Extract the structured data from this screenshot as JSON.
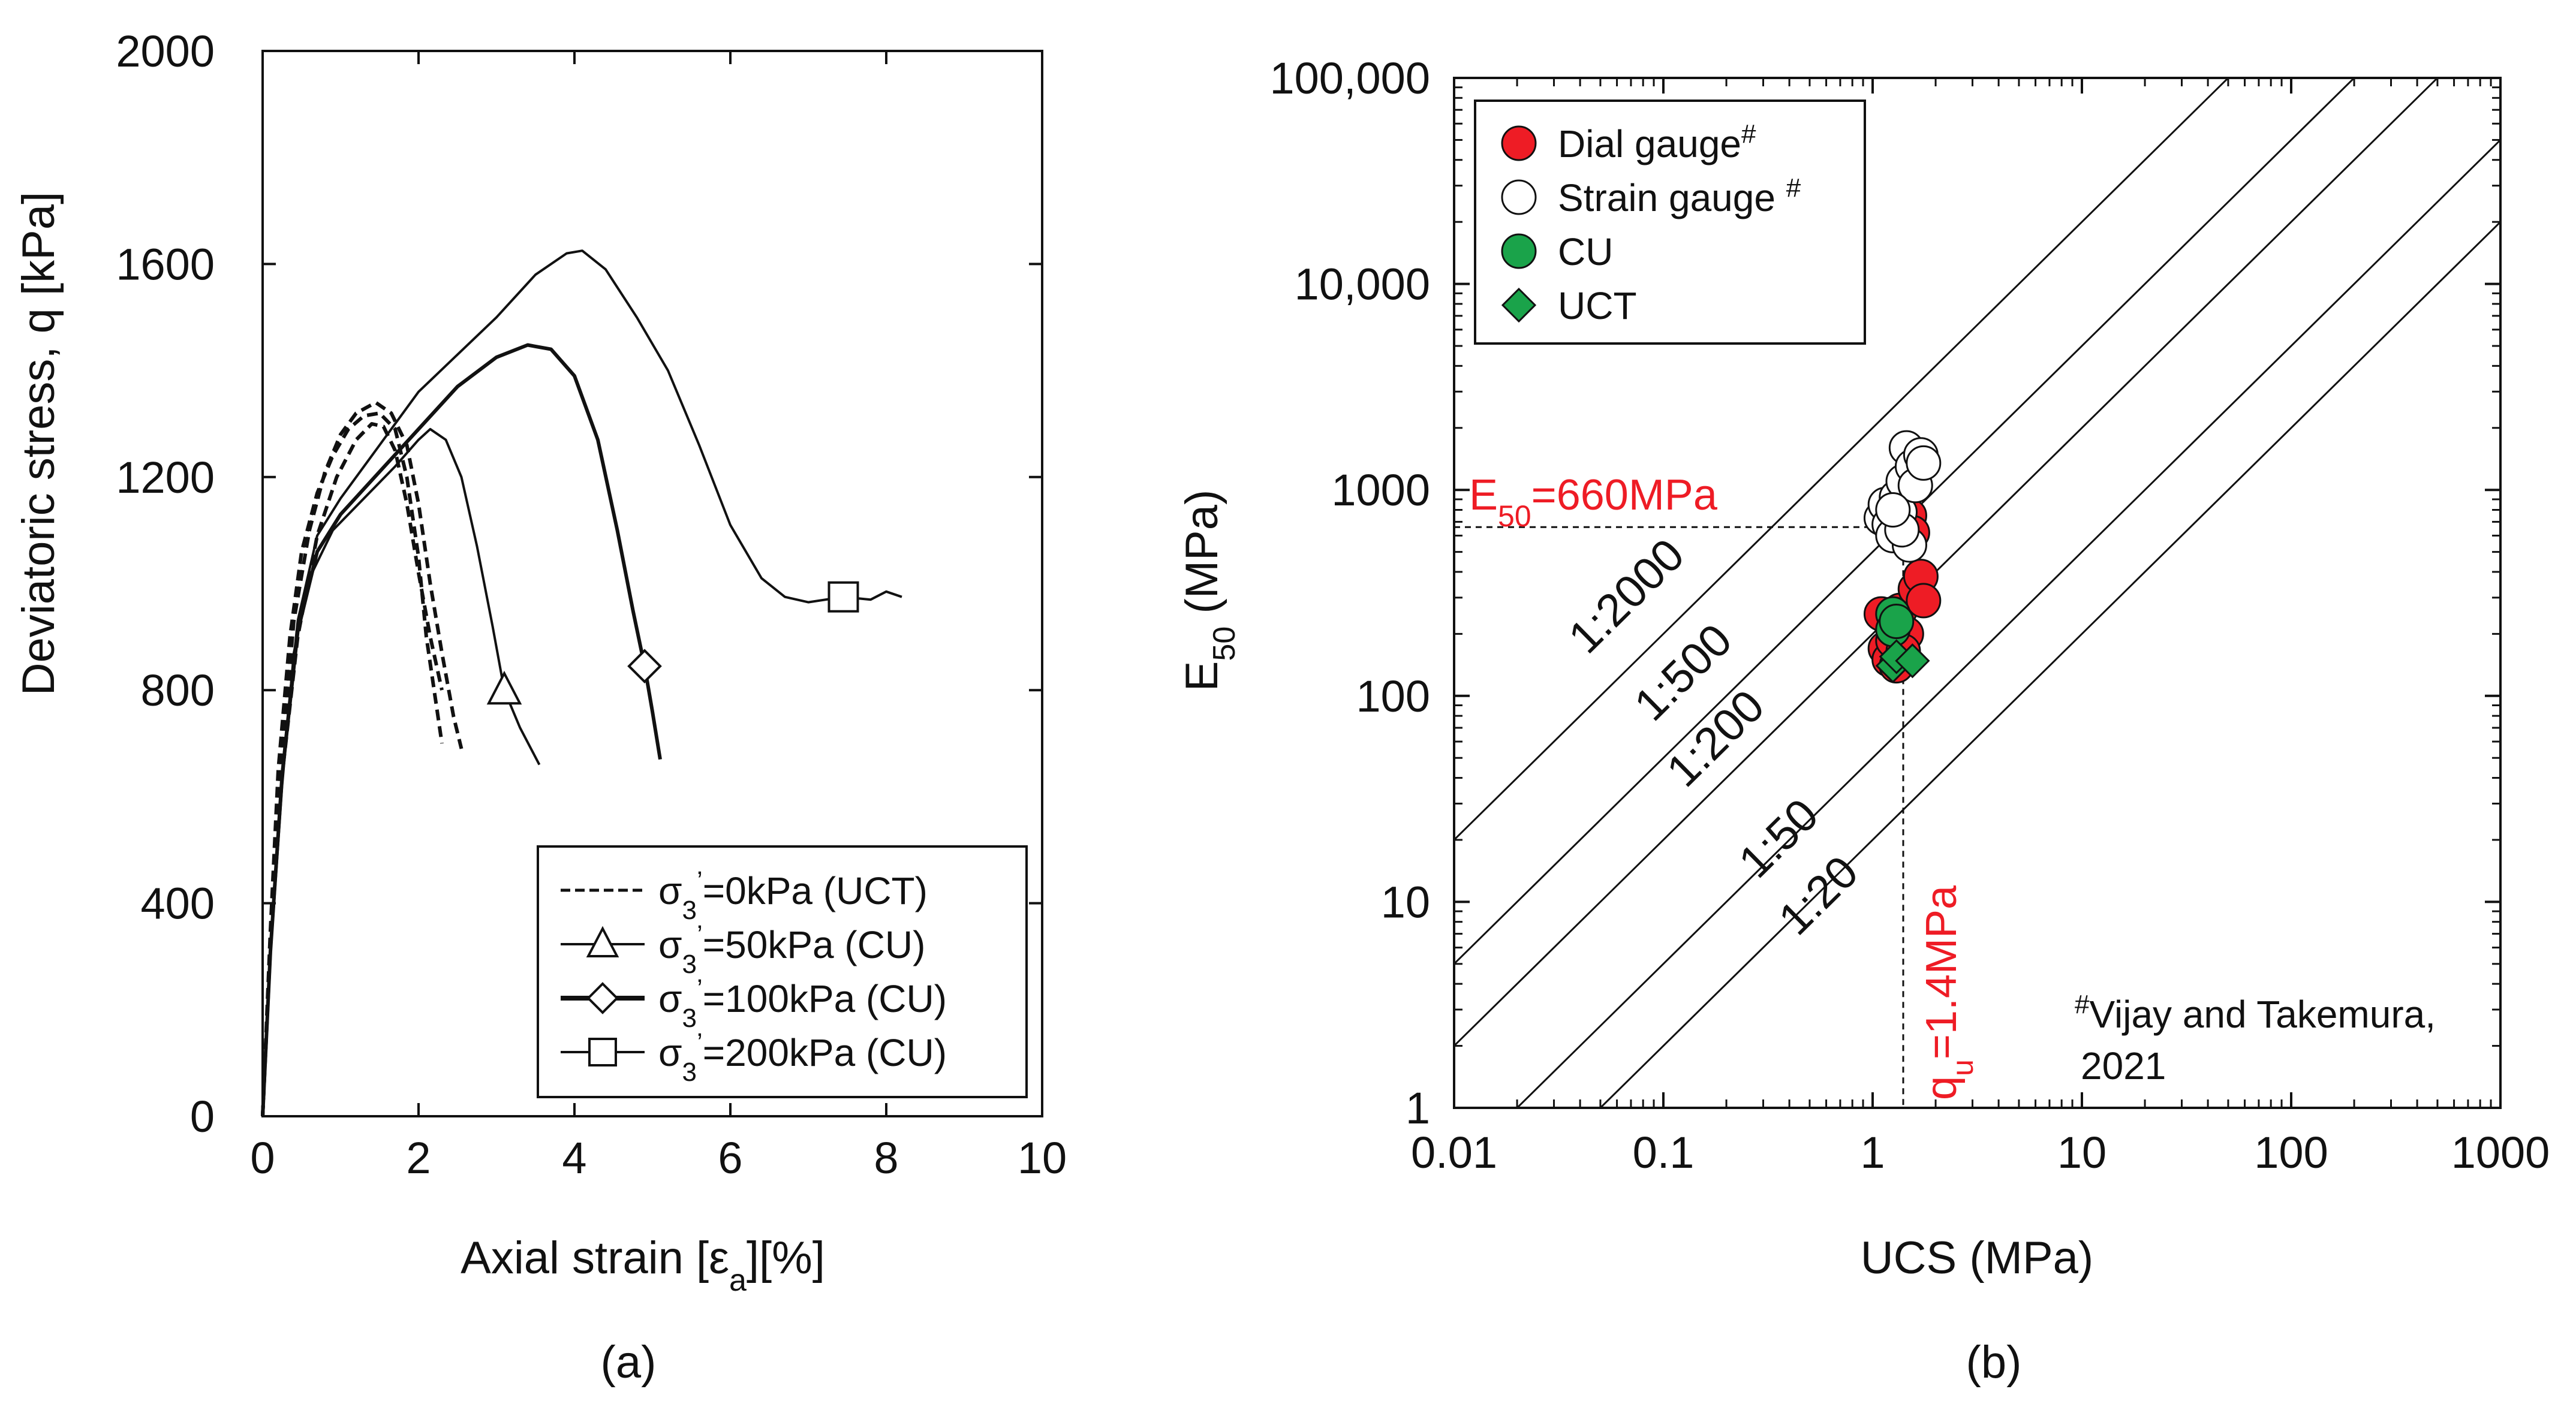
{
  "chart_data": [
    {
      "type": "line",
      "panel_label": "(a)",
      "xlabel_parts": [
        "Axial strain [",
        "ε",
        "a",
        "][%]"
      ],
      "ylabel": "Deviatoric stress, q [kPa]",
      "xlim": [
        0,
        10
      ],
      "ylim": [
        0,
        2000
      ],
      "xticks": [
        0,
        2,
        4,
        6,
        8,
        10
      ],
      "yticks": [
        0,
        400,
        800,
        1200,
        1600,
        2000
      ],
      "legend": {
        "position": "bottom-right",
        "entries": [
          {
            "series": "uct",
            "sigma": "σ",
            "sub": "3",
            "prime": "’",
            "rest": "=0kPa (UCT)"
          },
          {
            "series": "cu50",
            "sigma": "σ",
            "sub": "3",
            "prime": "’",
            "rest": "=50kPa (CU)"
          },
          {
            "series": "cu100",
            "sigma": "σ",
            "sub": "3",
            "prime": "’",
            "rest": "=100kPa (CU)"
          },
          {
            "series": "cu200",
            "sigma": "σ",
            "sub": "3",
            "prime": "’",
            "rest": "=200kPa (CU)"
          }
        ]
      },
      "series": [
        {
          "name": "σ3'=0kPa (UCT) test 1",
          "style": "dashed",
          "marker": "none",
          "points": [
            [
              0,
              0
            ],
            [
              0.1,
              350
            ],
            [
              0.2,
              650
            ],
            [
              0.35,
              900
            ],
            [
              0.5,
              1060
            ],
            [
              0.7,
              1170
            ],
            [
              0.9,
              1240
            ],
            [
              1.1,
              1290
            ],
            [
              1.3,
              1315
            ],
            [
              1.5,
              1320
            ],
            [
              1.7,
              1290
            ],
            [
              1.85,
              1200
            ],
            [
              2.0,
              1050
            ],
            [
              2.1,
              900
            ],
            [
              2.2,
              800
            ],
            [
              2.3,
              700
            ]
          ]
        },
        {
          "name": "σ3'=0kPa (UCT) test 2",
          "style": "dashed",
          "marker": "none",
          "points": [
            [
              0,
              0
            ],
            [
              0.12,
              380
            ],
            [
              0.25,
              680
            ],
            [
              0.4,
              930
            ],
            [
              0.6,
              1100
            ],
            [
              0.8,
              1210
            ],
            [
              1.0,
              1280
            ],
            [
              1.2,
              1320
            ],
            [
              1.45,
              1340
            ],
            [
              1.65,
              1320
            ],
            [
              1.85,
              1260
            ],
            [
              2.0,
              1150
            ],
            [
              2.15,
              1000
            ],
            [
              2.3,
              870
            ],
            [
              2.45,
              750
            ],
            [
              2.55,
              690
            ]
          ]
        },
        {
          "name": "σ3'=0kPa (UCT) test 3",
          "style": "dashed",
          "marker": "none",
          "points": [
            [
              0,
              0
            ],
            [
              0.1,
              330
            ],
            [
              0.25,
              640
            ],
            [
              0.45,
              900
            ],
            [
              0.7,
              1090
            ],
            [
              0.95,
              1200
            ],
            [
              1.2,
              1270
            ],
            [
              1.4,
              1300
            ],
            [
              1.55,
              1295
            ],
            [
              1.7,
              1250
            ],
            [
              1.85,
              1150
            ],
            [
              2.0,
              1020
            ],
            [
              2.15,
              900
            ],
            [
              2.3,
              800
            ]
          ]
        },
        {
          "name": "σ3'=50kPa (CU)",
          "style": "solid",
          "marker": "triangle",
          "marker_at": [
            3.1,
            800
          ],
          "points": [
            [
              0,
              0
            ],
            [
              0.1,
              300
            ],
            [
              0.25,
              620
            ],
            [
              0.4,
              870
            ],
            [
              0.6,
              1010
            ],
            [
              0.9,
              1100
            ],
            [
              1.3,
              1160
            ],
            [
              1.7,
              1220
            ],
            [
              2.0,
              1270
            ],
            [
              2.15,
              1290
            ],
            [
              2.35,
              1270
            ],
            [
              2.55,
              1200
            ],
            [
              2.75,
              1070
            ],
            [
              2.95,
              920
            ],
            [
              3.1,
              800
            ],
            [
              3.3,
              730
            ],
            [
              3.55,
              660
            ]
          ]
        },
        {
          "name": "σ3'=100kPa (CU)",
          "style": "solid",
          "marker": "diamond",
          "marker_at": [
            4.9,
            845
          ],
          "points": [
            [
              0,
              0
            ],
            [
              0.1,
              310
            ],
            [
              0.25,
              640
            ],
            [
              0.45,
              910
            ],
            [
              0.7,
              1060
            ],
            [
              1.0,
              1130
            ],
            [
              1.5,
              1210
            ],
            [
              2.0,
              1290
            ],
            [
              2.5,
              1370
            ],
            [
              3.0,
              1425
            ],
            [
              3.4,
              1448
            ],
            [
              3.7,
              1440
            ],
            [
              4.0,
              1390
            ],
            [
              4.3,
              1270
            ],
            [
              4.55,
              1100
            ],
            [
              4.75,
              950
            ],
            [
              4.9,
              845
            ],
            [
              5.0,
              760
            ],
            [
              5.1,
              670
            ]
          ]
        },
        {
          "name": "σ3'=200kPa (CU)",
          "style": "solid",
          "marker": "square",
          "marker_at": [
            7.45,
            975
          ],
          "points": [
            [
              0,
              0
            ],
            [
              0.1,
              320
            ],
            [
              0.25,
              650
            ],
            [
              0.45,
              930
            ],
            [
              0.7,
              1090
            ],
            [
              1.0,
              1160
            ],
            [
              1.5,
              1260
            ],
            [
              2.0,
              1360
            ],
            [
              2.5,
              1430
            ],
            [
              3.0,
              1500
            ],
            [
              3.5,
              1580
            ],
            [
              3.9,
              1620
            ],
            [
              4.1,
              1625
            ],
            [
              4.4,
              1590
            ],
            [
              4.8,
              1500
            ],
            [
              5.2,
              1400
            ],
            [
              5.6,
              1260
            ],
            [
              6.0,
              1110
            ],
            [
              6.4,
              1010
            ],
            [
              6.7,
              975
            ],
            [
              7.0,
              965
            ],
            [
              7.45,
              975
            ],
            [
              7.8,
              970
            ],
            [
              8.0,
              985
            ],
            [
              8.2,
              975
            ]
          ]
        }
      ]
    },
    {
      "type": "scatter",
      "panel_label": "(b)",
      "xlabel": "UCS (MPa)",
      "ylabel_parts": [
        "E",
        "50",
        " (MPa)"
      ],
      "xscale": "log",
      "yscale": "log",
      "xlim": [
        0.01,
        1000
      ],
      "ylim": [
        1,
        100000
      ],
      "xtick_values": [
        0.01,
        0.1,
        1,
        10,
        100,
        1000
      ],
      "xtick_labels": [
        "0.01",
        "0.1",
        "1",
        "10",
        "100",
        "1000"
      ],
      "ytick_values": [
        1,
        10,
        100,
        1000,
        10000,
        100000
      ],
      "ytick_labels": [
        "1",
        "10",
        "100",
        "1000",
        "10,000",
        "100,000"
      ],
      "ratio_lines": [
        {
          "label": "1:2000",
          "ratio": 2000,
          "label_at": [
            0.075,
            270
          ]
        },
        {
          "label": "1:500",
          "ratio": 500,
          "label_at": [
            0.14,
            115
          ]
        },
        {
          "label": "1:200",
          "ratio": 200,
          "label_at": [
            0.2,
            55
          ]
        },
        {
          "label": "1:50",
          "ratio": 50,
          "label_at": [
            0.4,
            18
          ]
        },
        {
          "label": "1:20",
          "ratio": 20,
          "label_at": [
            0.62,
            9.5
          ]
        }
      ],
      "legend": {
        "position": "top-left",
        "entries": [
          {
            "series": "dial",
            "label": "Dial gauge",
            "sup": "#"
          },
          {
            "series": "strain",
            "label": "Strain gauge ",
            "sup": "#"
          },
          {
            "series": "cu",
            "label": "CU",
            "sup": ""
          },
          {
            "series": "uct",
            "label": "UCT",
            "sup": ""
          }
        ]
      },
      "reference_lines": {
        "E50": 660,
        "qu": 1.4
      },
      "annotations": {
        "e50_prefix": "E",
        "e50_sub": "50",
        "e50_value": "=660MPa",
        "qu_prefix": "q",
        "qu_sub": "u",
        "qu_value": "=1.4MPa",
        "ref_sup": "#",
        "ref_line1": "Vijay and Takemura,",
        "ref_line2": "2021"
      },
      "colors": {
        "dial": "#ee1c25",
        "strain": "#ffffff",
        "cu": "#1aa34a",
        "uct": "#1aa34a",
        "annotation": "#ee1c25"
      },
      "series": [
        {
          "name": "Dial gauge",
          "marker": "circle",
          "color": "#ee1c25",
          "points": [
            [
              1.1,
              250
            ],
            [
              1.15,
              170
            ],
            [
              1.2,
              150
            ],
            [
              1.25,
              185
            ],
            [
              1.3,
              220
            ],
            [
              1.35,
              260
            ],
            [
              1.45,
              200
            ],
            [
              1.5,
              750
            ],
            [
              1.55,
              620
            ],
            [
              1.6,
              330
            ],
            [
              1.7,
              380
            ],
            [
              1.75,
              290
            ],
            [
              1.4,
              165
            ],
            [
              1.3,
              140
            ]
          ]
        },
        {
          "name": "Strain gauge",
          "marker": "circle",
          "color": "#ffffff",
          "points": [
            [
              1.1,
              730
            ],
            [
              1.15,
              850
            ],
            [
              1.2,
              680
            ],
            [
              1.25,
              600
            ],
            [
              1.3,
              920
            ],
            [
              1.35,
              780
            ],
            [
              1.4,
              1100
            ],
            [
              1.45,
              1600
            ],
            [
              1.5,
              540
            ],
            [
              1.55,
              1300
            ],
            [
              1.6,
              1050
            ],
            [
              1.7,
              1480
            ],
            [
              1.75,
              1350
            ],
            [
              1.38,
              640
            ],
            [
              1.25,
              800
            ]
          ]
        },
        {
          "name": "CU",
          "marker": "circle",
          "color": "#1aa34a",
          "points": [
            [
              1.25,
              250
            ],
            [
              1.25,
              210
            ],
            [
              1.3,
              230
            ]
          ]
        },
        {
          "name": "UCT",
          "marker": "diamond",
          "color": "#1aa34a",
          "points": [
            [
              1.25,
              140
            ],
            [
              1.3,
              155
            ],
            [
              1.55,
              148
            ]
          ]
        }
      ]
    }
  ]
}
